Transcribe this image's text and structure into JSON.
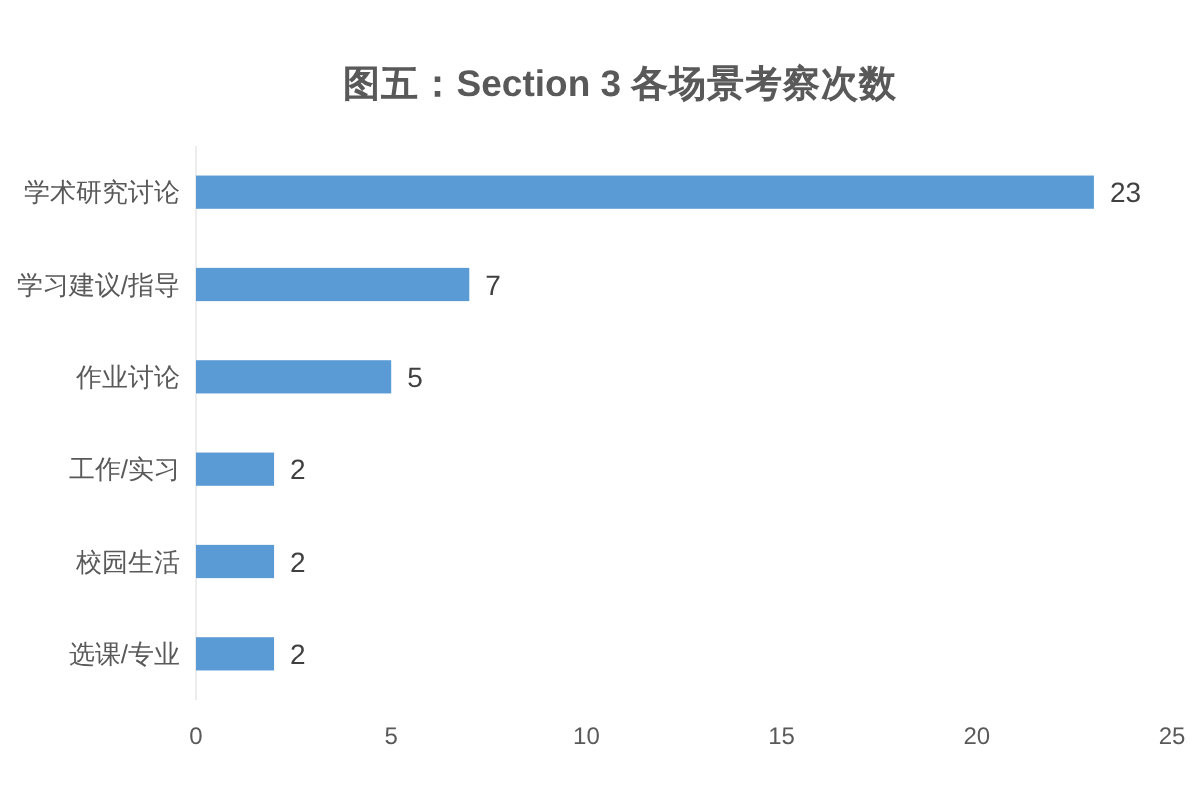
{
  "chart_data": {
    "type": "bar",
    "orientation": "horizontal",
    "title": "图五：Section 3 各场景考察次数",
    "categories": [
      "学术研究讨论",
      "学习建议/指导",
      "作业讨论",
      "工作/实习",
      "校园生活",
      "选课/专业"
    ],
    "values": [
      23,
      7,
      5,
      2,
      2,
      2
    ],
    "color": "#5b9bd5",
    "xlim": [
      0,
      25
    ],
    "xticks": [
      0,
      5,
      10,
      15,
      20,
      25
    ],
    "data_labels": true,
    "grid": false
  }
}
